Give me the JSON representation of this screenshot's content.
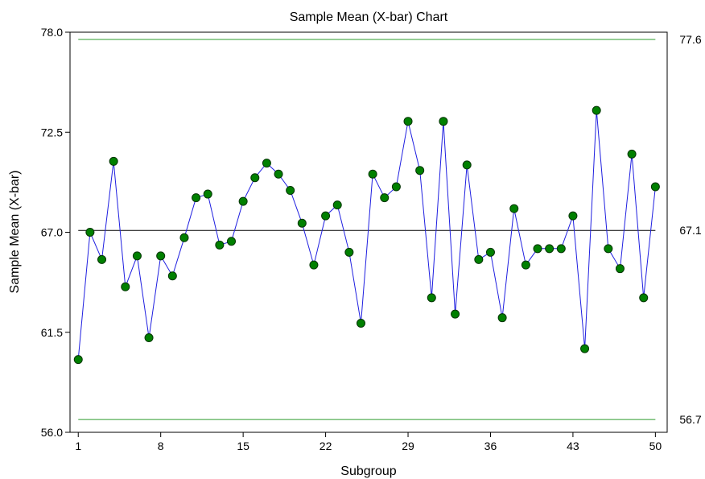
{
  "chart_data": {
    "type": "line",
    "title": "Sample Mean (X-bar) Chart",
    "xlabel": "Subgroup",
    "ylabel": "Sample Mean (X-bar)",
    "xlim": [
      0.3,
      51
    ],
    "ylim": [
      56.0,
      78.0
    ],
    "x_ticks": [
      1,
      8,
      15,
      22,
      29,
      36,
      43,
      50
    ],
    "y_ticks": [
      56.0,
      61.5,
      67.0,
      72.5,
      78.0
    ],
    "y_tick_labels": [
      "56.0",
      "61.5",
      "67.0",
      "72.5",
      "78.0"
    ],
    "x": [
      1,
      2,
      3,
      4,
      5,
      6,
      7,
      8,
      9,
      10,
      11,
      12,
      13,
      14,
      15,
      16,
      17,
      18,
      19,
      20,
      21,
      22,
      23,
      24,
      25,
      26,
      27,
      28,
      29,
      30,
      31,
      32,
      33,
      34,
      35,
      36,
      37,
      38,
      39,
      40,
      41,
      42,
      43,
      44,
      45,
      46,
      47,
      48,
      49,
      50
    ],
    "series": [
      {
        "values": [
          60.0,
          67.0,
          65.5,
          70.9,
          64.0,
          65.7,
          61.2,
          65.7,
          64.6,
          66.7,
          68.9,
          69.1,
          66.3,
          66.5,
          68.7,
          70.0,
          70.8,
          70.2,
          69.3,
          67.5,
          65.2,
          67.9,
          68.5,
          65.9,
          62.0,
          70.2,
          68.9,
          69.5,
          73.1,
          70.4,
          63.4,
          73.1,
          62.5,
          70.7,
          65.5,
          65.9,
          62.3,
          68.3,
          65.2,
          66.1,
          66.1,
          66.1,
          67.9,
          60.6,
          73.7,
          66.1,
          65.0,
          71.3,
          63.4,
          69.5
        ]
      }
    ],
    "limits": {
      "ucl": {
        "value": 77.6,
        "label": "77.6"
      },
      "center": {
        "value": 67.1,
        "label": "67.1"
      },
      "lcl": {
        "value": 56.7,
        "label": "56.7"
      }
    },
    "colors": {
      "series_line": "#1f1fe0",
      "marker_fill": "#008000",
      "marker_stroke": "#003300",
      "control_limit": "#2e9b2e",
      "center_line": "#000000"
    },
    "grid": false,
    "legend": "none"
  }
}
